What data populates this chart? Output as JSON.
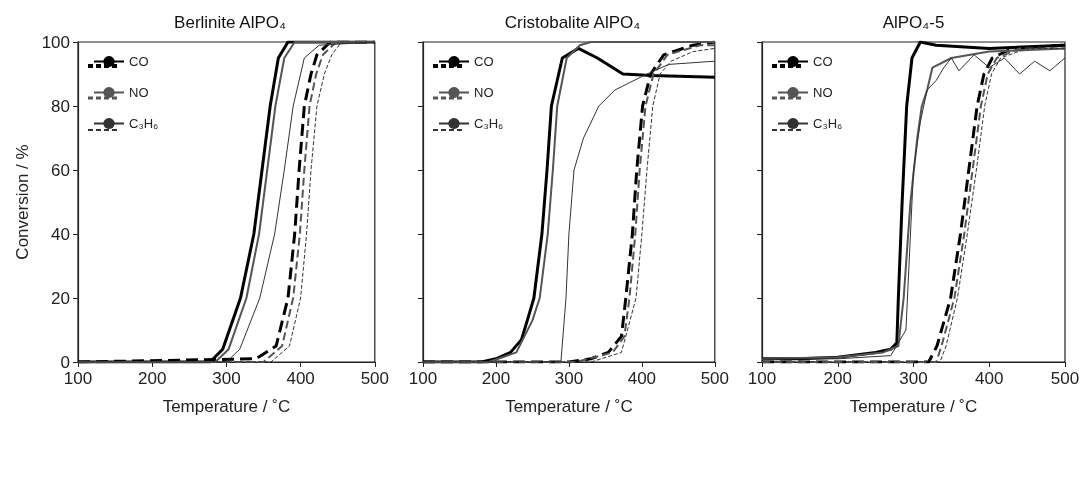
{
  "chart_data": [
    {
      "type": "line",
      "title": "Berlinite AlPO₄",
      "xlabel": "Temperature / ˚C",
      "ylabel": "Conversion / %",
      "xlim": [
        100,
        500
      ],
      "xticks": [
        100,
        200,
        300,
        400,
        500
      ],
      "ylim": [
        0,
        100
      ],
      "yticks": [
        0,
        20,
        40,
        60,
        80,
        100
      ],
      "grid": false,
      "legend": "top left",
      "marker": "none",
      "series": [
        {
          "name": "CO",
          "color": "#000000",
          "line_style": "solid",
          "x": [
            100,
            278,
            295,
            319,
            337,
            348,
            359,
            370,
            383,
            500
          ],
          "values": [
            0,
            0,
            4,
            20,
            40,
            60,
            80,
            95,
            100,
            100
          ]
        },
        {
          "color": "#000000",
          "line_style": "dashed",
          "x": [
            100,
            340,
            367,
            383,
            392,
            398,
            405,
            414,
            422,
            440,
            500
          ],
          "values": [
            0,
            1,
            5,
            20,
            40,
            60,
            80,
            90,
            96,
            100,
            100
          ]
        },
        {
          "name": "NO",
          "color": "#555555",
          "line_style": "solid",
          "x": [
            100,
            285,
            303,
            327,
            344,
            355,
            366,
            378,
            392,
            500
          ],
          "values": [
            0,
            0,
            4,
            20,
            40,
            60,
            80,
            95,
            100,
            100
          ]
        },
        {
          "color": "#555555",
          "line_style": "dashed",
          "x": [
            100,
            350,
            375,
            390,
            399,
            405,
            412,
            421,
            430,
            448,
            500
          ],
          "values": [
            0,
            0,
            5,
            20,
            40,
            60,
            80,
            90,
            96,
            100,
            100
          ]
        },
        {
          "name": "C₃H₆",
          "color": "#333333",
          "line_style": "solid",
          "x": [
            100,
            300,
            318,
            345,
            365,
            378,
            390,
            405,
            425,
            500
          ],
          "values": [
            0,
            0,
            4,
            20,
            40,
            60,
            80,
            95,
            99,
            100
          ]
        },
        {
          "color": "#333333",
          "line_style": "dashed",
          "x": [
            100,
            360,
            385,
            400,
            408,
            414,
            422,
            432,
            442,
            455,
            500
          ],
          "values": [
            0,
            0,
            5,
            20,
            40,
            60,
            80,
            90,
            96,
            100,
            100
          ]
        }
      ]
    },
    {
      "type": "line",
      "title": "Cristobalite AlPO₄",
      "xlabel": "Temperature / ˚C",
      "xlim": [
        100,
        500
      ],
      "xticks": [
        100,
        200,
        300,
        400,
        500
      ],
      "ylim": [
        0,
        100
      ],
      "yticks": [
        0,
        20,
        40,
        60,
        80,
        100
      ],
      "tick_labels": "x",
      "grid": false,
      "legend": "top left",
      "marker": "none",
      "series": [
        {
          "name": "CO",
          "color": "#000000",
          "line_style": "solid",
          "x": [
            100,
            180,
            200,
            220,
            235,
            243,
            252,
            263,
            270,
            276,
            291,
            313,
            339,
            374,
            413,
            500
          ],
          "values": [
            0,
            0,
            1,
            3,
            7,
            13,
            20,
            40,
            60,
            80,
            95,
            98,
            95,
            90,
            89.5,
            89
          ]
        },
        {
          "color": "#000000",
          "line_style": "dashed",
          "x": [
            100,
            300,
            330,
            354,
            372,
            378,
            387,
            393,
            401,
            412,
            430,
            470,
            500
          ],
          "values": [
            0,
            0,
            1,
            3,
            8,
            20,
            40,
            60,
            80,
            90,
            96,
            99,
            100
          ]
        },
        {
          "name": "NO",
          "color": "#555555",
          "line_style": "solid",
          "x": [
            100,
            190,
            228,
            250,
            260,
            271,
            278,
            284,
            297,
            315,
            330,
            500
          ],
          "values": [
            0,
            0,
            3,
            13,
            20,
            40,
            60,
            80,
            95,
            99,
            100,
            100
          ]
        },
        {
          "color": "#555555",
          "line_style": "dashed",
          "x": [
            100,
            310,
            360,
            376,
            383,
            391,
            397,
            405,
            416,
            435,
            480,
            500
          ],
          "values": [
            0,
            0,
            3,
            8,
            20,
            40,
            60,
            80,
            90,
            96,
            99,
            99
          ]
        },
        {
          "name": "C₃H₆",
          "color": "#333333",
          "line_style": "solid",
          "x": [
            100,
            289,
            296,
            300,
            307,
            320,
            341,
            363,
            407,
            437,
            500
          ],
          "values": [
            0,
            0,
            20,
            40,
            60,
            70,
            80,
            85,
            90,
            93,
            94
          ]
        },
        {
          "color": "#333333",
          "line_style": "dashed",
          "x": [
            100,
            330,
            372,
            392,
            400,
            407,
            415,
            425,
            440,
            470,
            500
          ],
          "values": [
            0,
            0,
            3,
            20,
            40,
            60,
            80,
            90,
            94,
            97,
            98
          ]
        }
      ]
    },
    {
      "type": "line",
      "title": "AlPO₄-5",
      "xlabel": "Temperature / ˚C",
      "xlim": [
        100,
        500
      ],
      "xticks": [
        100,
        200,
        300,
        400,
        500
      ],
      "ylim": [
        0,
        100
      ],
      "yticks": [
        0,
        20,
        40,
        60,
        80,
        100
      ],
      "tick_labels": "x",
      "grid": false,
      "legend": "top left",
      "marker": "none",
      "series": [
        {
          "name": "CO",
          "color": "#000000",
          "line_style": "solid",
          "x": [
            100,
            150,
            200,
            250,
            270,
            278,
            280,
            285,
            291,
            298,
            309,
            330,
            400,
            500
          ],
          "values": [
            1,
            1,
            1.5,
            3,
            4,
            6,
            20,
            50,
            80,
            95,
            100,
            99,
            98,
            99
          ]
        },
        {
          "color": "#000000",
          "line_style": "dashed",
          "x": [
            100,
            320,
            331,
            349,
            362,
            373,
            384,
            393,
            404,
            430,
            500
          ],
          "values": [
            0,
            0,
            5,
            20,
            40,
            60,
            80,
            90,
            95,
            98,
            99
          ]
        },
        {
          "name": "NO",
          "color": "#555555",
          "line_style": "solid",
          "x": [
            100,
            200,
            260,
            280,
            287,
            296,
            305,
            311,
            318,
            325,
            350,
            400,
            500
          ],
          "values": [
            1,
            1.5,
            3,
            5,
            20,
            50,
            70,
            80,
            85,
            92,
            95,
            97,
            98
          ]
        },
        {
          "color": "#555555",
          "line_style": "dashed",
          "x": [
            100,
            330,
            337,
            354,
            367,
            378,
            389,
            398,
            410,
            440,
            500
          ],
          "values": [
            0,
            0,
            5,
            20,
            40,
            60,
            80,
            90,
            95,
            98,
            98
          ]
        },
        {
          "name": "C₃H₆",
          "color": "#333333",
          "line_style": "solid",
          "x": [
            100,
            200,
            270,
            290,
            296,
            300,
            309,
            318,
            330,
            340,
            350,
            360,
            380,
            400,
            420,
            440,
            460,
            480,
            500
          ],
          "values": [
            1,
            1,
            2,
            10,
            40,
            60,
            75,
            85,
            88,
            92,
            95,
            91,
            96,
            92,
            95,
            90,
            94,
            91,
            95
          ]
        },
        {
          "color": "#333333",
          "line_style": "dashed",
          "x": [
            100,
            335,
            343,
            358,
            371,
            383,
            394,
            403,
            415,
            450,
            500
          ],
          "values": [
            0,
            0,
            5,
            20,
            40,
            60,
            80,
            90,
            95,
            98,
            98
          ]
        }
      ]
    }
  ]
}
